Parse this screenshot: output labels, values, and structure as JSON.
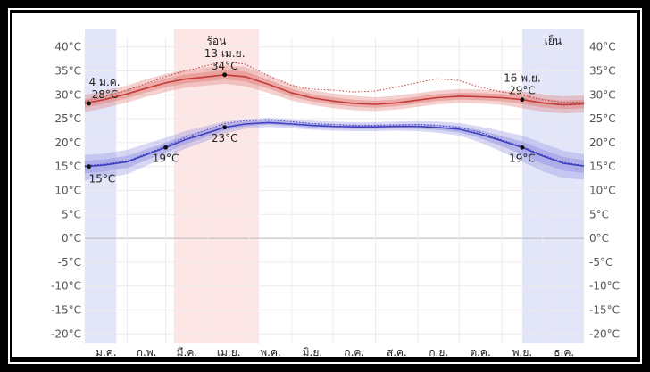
{
  "chart_data": {
    "type": "line",
    "title": "",
    "xlabel": "",
    "ylabel": "",
    "ylim": [
      -22,
      42
    ],
    "y_ticks": [
      -20,
      -15,
      -10,
      -5,
      0,
      5,
      10,
      15,
      20,
      25,
      30,
      35,
      40
    ],
    "y_tick_labels": [
      "-20°C",
      "-15°C",
      "-10°C",
      "-5°C",
      "0°C",
      "5°C",
      "10°C",
      "15°C",
      "20°C",
      "25°C",
      "30°C",
      "35°C",
      "40°C"
    ],
    "months": [
      "ม.ค.",
      "ก.พ.",
      "มี.ค.",
      "เม.ย.",
      "พ.ค.",
      "มิ.ย.",
      "ก.ค.",
      "ส.ค.",
      "ก.ย.",
      "ต.ค.",
      "พ.ย.",
      "ธ.ค."
    ],
    "grid": true,
    "seasons": [
      {
        "label": "",
        "kind": "cold",
        "start_day": 1,
        "end_day": 24,
        "color": "#dadcf7"
      },
      {
        "label": "ร้อน",
        "kind": "hot",
        "start_day": 66,
        "end_day": 128,
        "color": "#fbdede"
      },
      {
        "label": "เย็น",
        "kind": "cold",
        "start_day": 320,
        "end_day": 365,
        "color": "#dadcf7"
      }
    ],
    "series": [
      {
        "kind": "high",
        "color": "#c33b36",
        "band_color": "#e07a76",
        "day": [
          1,
          15,
          32,
          46,
          60,
          74,
          91,
          103,
          118,
          135,
          152,
          166,
          182,
          197,
          213,
          228,
          244,
          258,
          274,
          289,
          305,
          320,
          335,
          350,
          365
        ],
        "values": [
          28.2,
          29.0,
          30.2,
          31.4,
          32.5,
          33.3,
          33.8,
          34.2,
          33.8,
          32.2,
          30.4,
          29.4,
          28.7,
          28.2,
          28.0,
          28.3,
          28.9,
          29.4,
          29.7,
          29.6,
          29.4,
          29.0,
          28.3,
          27.9,
          28.1
        ],
        "p10": [
          26.4,
          27.2,
          28.4,
          29.6,
          30.6,
          31.5,
          32.0,
          32.3,
          31.8,
          30.4,
          28.8,
          27.9,
          27.2,
          26.8,
          26.6,
          26.9,
          27.5,
          28.0,
          28.3,
          28.2,
          27.9,
          27.2,
          26.5,
          26.1,
          26.3
        ],
        "p90": [
          30.0,
          30.8,
          32.0,
          33.3,
          34.4,
          35.2,
          35.8,
          36.2,
          35.9,
          34.1,
          32.1,
          31.0,
          30.3,
          29.8,
          29.5,
          29.8,
          30.4,
          30.9,
          31.2,
          31.1,
          30.9,
          30.7,
          30.1,
          29.7,
          29.9
        ],
        "dotted": [
          28.6,
          29.6,
          31.0,
          32.4,
          33.8,
          35.0,
          36.2,
          37.0,
          36.4,
          34.0,
          32.0,
          31.2,
          31.0,
          30.6,
          30.8,
          31.6,
          32.6,
          33.4,
          33.0,
          31.6,
          30.6,
          30.0,
          29.0,
          28.4,
          28.5
        ],
        "annotations": [
          {
            "day": 4,
            "value": 28.2,
            "label": "28°C",
            "date": "4 ม.ค."
          },
          {
            "day": 103,
            "value": 34.2,
            "label": "34°C",
            "date": "13 เม.ย."
          },
          {
            "day": 320,
            "value": 29.0,
            "label": "29°C",
            "date": "16 พ.ย."
          }
        ]
      },
      {
        "kind": "low",
        "color": "#3f3fbf",
        "band_color": "#8f8fe0",
        "day": [
          1,
          15,
          32,
          46,
          60,
          74,
          91,
          103,
          118,
          135,
          152,
          166,
          182,
          197,
          213,
          228,
          244,
          258,
          274,
          289,
          305,
          320,
          335,
          350,
          365
        ],
        "values": [
          15.0,
          15.3,
          16.0,
          17.5,
          19.0,
          20.6,
          22.1,
          23.2,
          23.9,
          24.2,
          23.9,
          23.6,
          23.4,
          23.3,
          23.3,
          23.4,
          23.4,
          23.2,
          22.8,
          21.8,
          20.4,
          19.0,
          17.2,
          15.7,
          15.1
        ],
        "p10": [
          12.2,
          12.6,
          13.4,
          15.2,
          16.9,
          18.7,
          20.5,
          21.9,
          22.9,
          23.3,
          23.0,
          22.7,
          22.5,
          22.4,
          22.4,
          22.5,
          22.4,
          22.1,
          21.5,
          20.1,
          18.1,
          16.0,
          14.0,
          12.6,
          12.3
        ],
        "p90": [
          17.4,
          17.7,
          18.5,
          19.8,
          21.0,
          22.4,
          23.6,
          24.4,
          24.9,
          25.2,
          24.9,
          24.6,
          24.4,
          24.3,
          24.3,
          24.4,
          24.5,
          24.4,
          24.1,
          23.4,
          22.4,
          21.5,
          19.9,
          18.3,
          17.6
        ],
        "dotted": [
          15.2,
          15.5,
          16.2,
          17.7,
          19.3,
          21.0,
          22.8,
          24.0,
          24.6,
          24.8,
          24.4,
          24.0,
          23.8,
          23.6,
          23.6,
          23.7,
          23.8,
          23.6,
          23.2,
          22.2,
          20.6,
          19.2,
          17.4,
          15.9,
          15.2
        ],
        "annotations": [
          {
            "day": 4,
            "value": 15.0,
            "label": "15°C",
            "date": ""
          },
          {
            "day": 60,
            "value": 19.0,
            "label": "19°C",
            "date": ""
          },
          {
            "day": 103,
            "value": 23.2,
            "label": "23°C",
            "date": ""
          },
          {
            "day": 320,
            "value": 19.0,
            "label": "19°C",
            "date": ""
          }
        ]
      }
    ]
  }
}
